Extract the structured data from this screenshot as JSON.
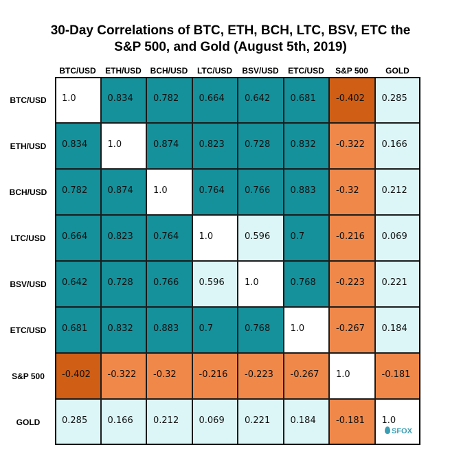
{
  "chart_data": {
    "type": "heatmap",
    "title": "30-Day Correlations of BTC, ETH, BCH, LTC, BSV, ETC the S&P 500, and Gold (August 5th, 2019)",
    "labels": [
      "BTC/USD",
      "ETH/USD",
      "BCH/USD",
      "LTC/USD",
      "BSV/USD",
      "ETC/USD",
      "S&P 500",
      "GOLD"
    ],
    "matrix": [
      [
        "1.0",
        "0.834",
        "0.782",
        "0.664",
        "0.642",
        "0.681",
        "-0.402",
        "0.285"
      ],
      [
        "0.834",
        "1.0",
        "0.874",
        "0.823",
        "0.728",
        "0.832",
        "-0.322",
        "0.166"
      ],
      [
        "0.782",
        "0.874",
        "1.0",
        "0.764",
        "0.766",
        "0.883",
        "-0.32",
        "0.212"
      ],
      [
        "0.664",
        "0.823",
        "0.764",
        "1.0",
        "0.596",
        "0.7",
        "-0.216",
        "0.069"
      ],
      [
        "0.642",
        "0.728",
        "0.766",
        "0.596",
        "1.0",
        "0.768",
        "-0.223",
        "0.221"
      ],
      [
        "0.681",
        "0.832",
        "0.883",
        "0.7",
        "0.768",
        "1.0",
        "-0.267",
        "0.184"
      ],
      [
        "-0.402",
        "-0.322",
        "-0.32",
        "-0.216",
        "-0.223",
        "-0.267",
        "1.0",
        "-0.181"
      ],
      [
        "0.285",
        "0.166",
        "0.212",
        "0.069",
        "0.221",
        "0.184",
        "-0.181",
        "1.0"
      ]
    ],
    "colors": {
      "diagonal": "#ffffff",
      "strong_positive": "#14919b",
      "weak_positive": "#dcf6f7",
      "moderate_negative": "#f0884a",
      "strong_negative": "#d05e15"
    },
    "logo_text": "SFOX"
  }
}
